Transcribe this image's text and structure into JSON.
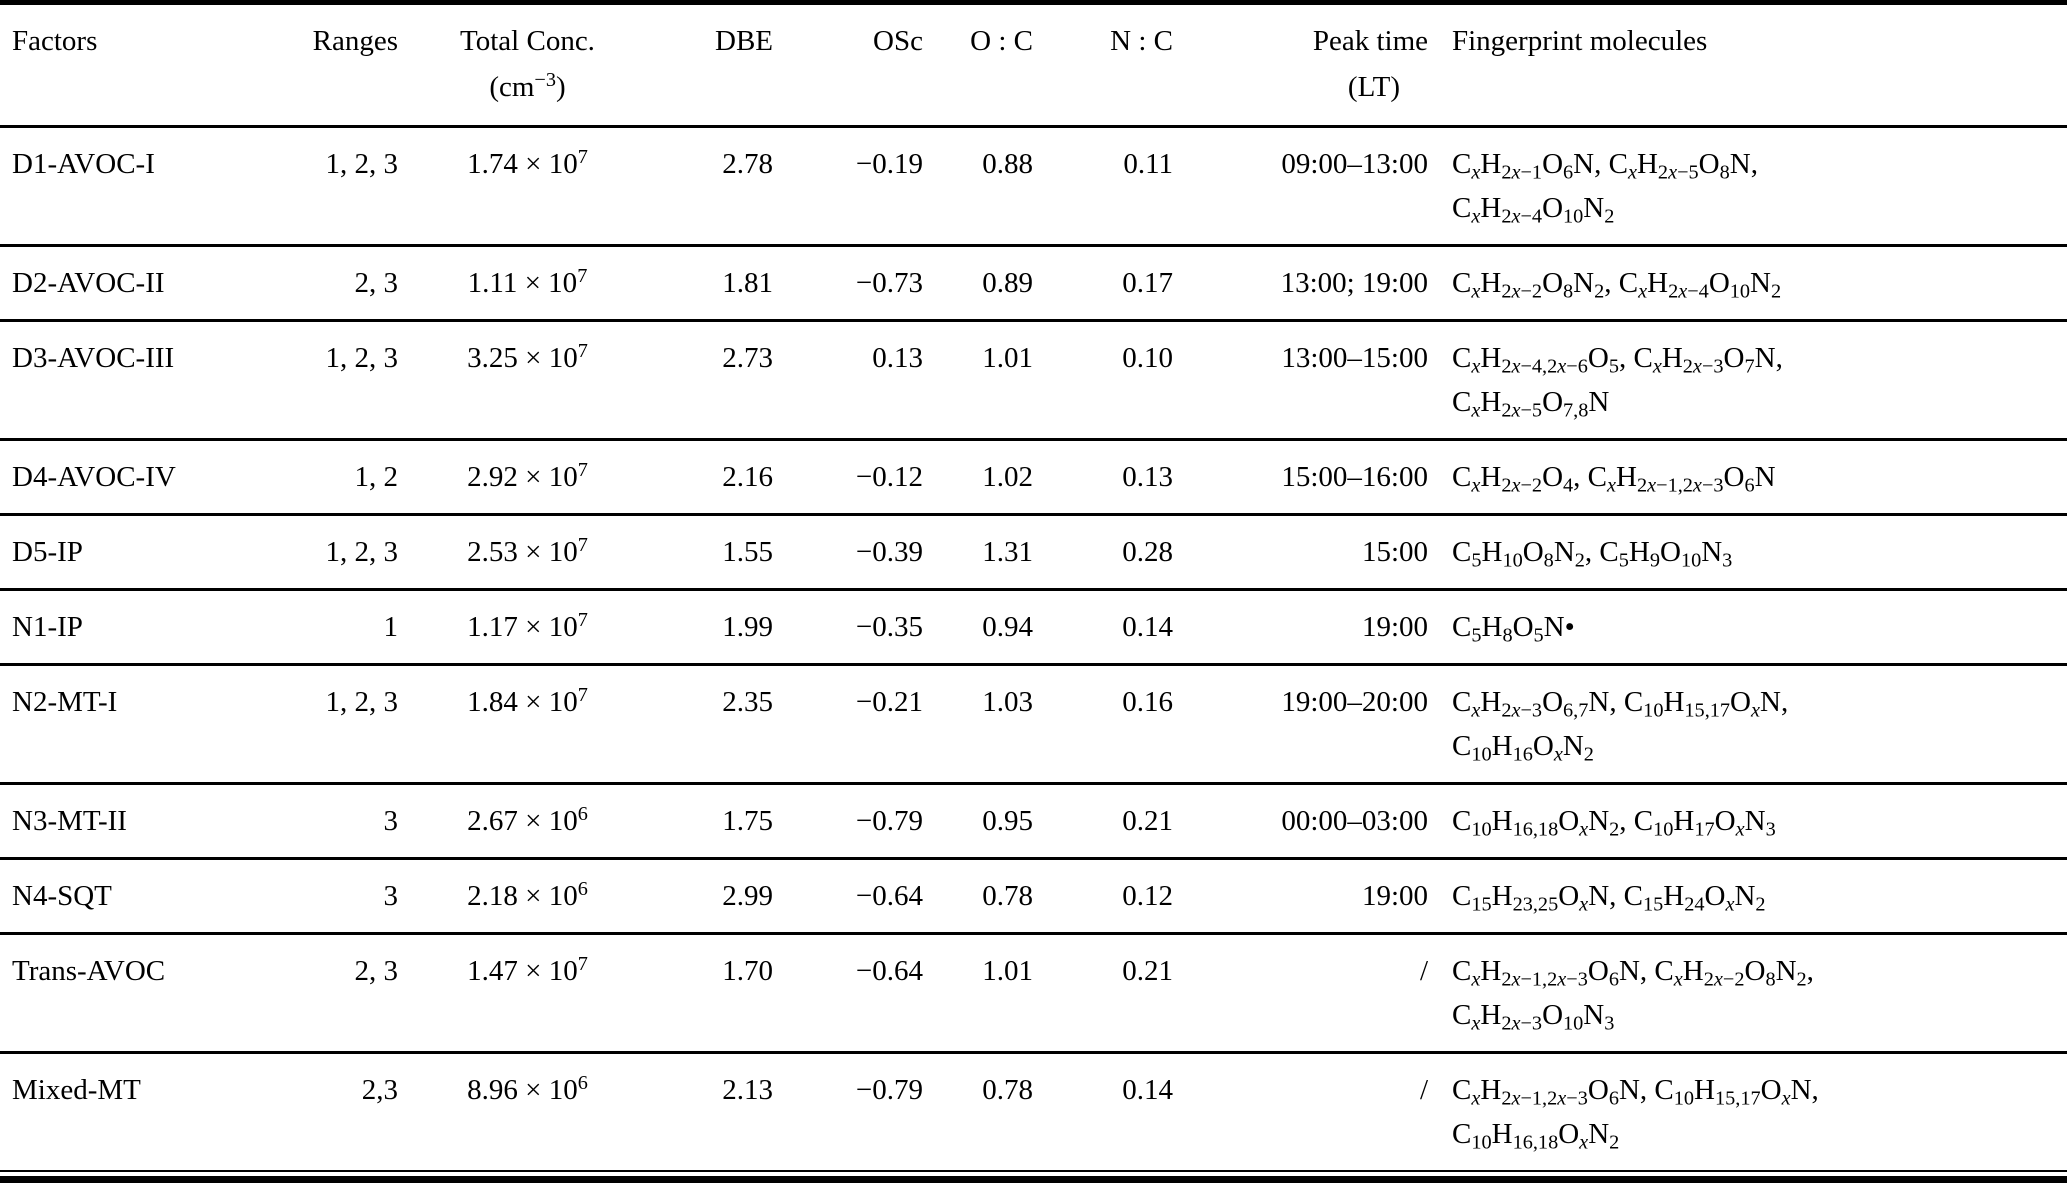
{
  "page": {
    "background_color": "#ffffff",
    "text_color": "#000000",
    "rule_color": "#000000"
  },
  "table": {
    "title": "PMF factors summary table",
    "columns": [
      {
        "key": "factor",
        "label": "Factors"
      },
      {
        "key": "ranges",
        "label": "Ranges"
      },
      {
        "key": "conc",
        "label": "Total Conc.",
        "label2": "(cm^−3^)"
      },
      {
        "key": "dbe",
        "label": "DBE"
      },
      {
        "key": "osc",
        "label": "OSc"
      },
      {
        "key": "oc",
        "label": "O : C"
      },
      {
        "key": "nc",
        "label": "N : C"
      },
      {
        "key": "peak",
        "label": "Peak time",
        "label2": "(LT)"
      },
      {
        "key": "molecules",
        "label": "Fingerprint molecules"
      }
    ],
    "rows": [
      {
        "factor": "D1-AVOC-I",
        "ranges": "1, 2, 3",
        "conc": "1.74 × 10^7^",
        "dbe": "2.78",
        "osc": "−0.19",
        "oc": "0.88",
        "nc": "0.11",
        "peak": "09:00–13:00",
        "molecules": [
          "C~x~H~2x−1~O~6~N, C~x~H~2x−5~O~8~N,",
          "C~x~H~2x−4~O~10~N~2~"
        ]
      },
      {
        "factor": "D2-AVOC-II",
        "ranges": "2, 3",
        "conc": "1.11 × 10^7^",
        "dbe": "1.81",
        "osc": "−0.73",
        "oc": "0.89",
        "nc": "0.17",
        "peak": "13:00; 19:00",
        "molecules": [
          "C~x~H~2x−2~O~8~N~2~, C~x~H~2x−4~O~10~N~2~"
        ]
      },
      {
        "factor": "D3-AVOC-III",
        "ranges": "1, 2, 3",
        "conc": "3.25 × 10^7^",
        "dbe": "2.73",
        "osc": "0.13",
        "oc": "1.01",
        "nc": "0.10",
        "peak": "13:00–15:00",
        "molecules": [
          "C~x~H~2x−4,2x−6~O~5~, C~x~H~2x−3~O~7~N,",
          "C~x~H~2x−5~O~7,8~N"
        ]
      },
      {
        "factor": "D4-AVOC-IV",
        "ranges": "1, 2",
        "conc": "2.92 × 10^7^",
        "dbe": "2.16",
        "osc": "−0.12",
        "oc": "1.02",
        "nc": "0.13",
        "peak": "15:00–16:00",
        "molecules": [
          "C~x~H~2x−2~O~4~, C~x~H~2x−1,2x−3~O~6~N"
        ]
      },
      {
        "factor": "D5-IP",
        "ranges": "1, 2, 3",
        "conc": "2.53 × 10^7^",
        "dbe": "1.55",
        "osc": "−0.39",
        "oc": "1.31",
        "nc": "0.28",
        "peak": "15:00",
        "molecules": [
          "C~5~H~10~O~8~N~2~, C~5~H~9~O~10~N~3~"
        ]
      },
      {
        "factor": "N1-IP",
        "ranges": "1",
        "conc": "1.17 × 10^7^",
        "dbe": "1.99",
        "osc": "−0.35",
        "oc": "0.94",
        "nc": "0.14",
        "peak": "19:00",
        "molecules": [
          "C~5~H~8~O~5~N•"
        ]
      },
      {
        "factor": "N2-MT-I",
        "ranges": "1, 2, 3",
        "conc": "1.84 × 10^7^",
        "dbe": "2.35",
        "osc": "−0.21",
        "oc": "1.03",
        "nc": "0.16",
        "peak": "19:00–20:00",
        "molecules": [
          "C~x~H~2x−3~O~6,7~N, C~10~H~15,17~O~x~N,",
          "C~10~H~16~O~x~N~2~"
        ]
      },
      {
        "factor": "N3-MT-II",
        "ranges": "3",
        "conc": "2.67 × 10^6^",
        "dbe": "1.75",
        "osc": "−0.79",
        "oc": "0.95",
        "nc": "0.21",
        "peak": "00:00–03:00",
        "molecules": [
          "C~10~H~16,18~O~x~N~2~, C~10~H~17~O~x~N~3~"
        ]
      },
      {
        "factor": "N4-SQT",
        "ranges": "3",
        "conc": "2.18 × 10^6^",
        "dbe": "2.99",
        "osc": "−0.64",
        "oc": "0.78",
        "nc": "0.12",
        "peak": "19:00",
        "molecules": [
          "C~15~H~23,25~O~x~N, C~15~H~24~O~x~N~2~"
        ]
      },
      {
        "factor": "Trans-AVOC",
        "ranges": "2, 3",
        "conc": "1.47 × 10^7^",
        "dbe": "1.70",
        "osc": "−0.64",
        "oc": "1.01",
        "nc": "0.21",
        "peak": "/",
        "molecules": [
          "C~x~H~2x−1,2x−3~O~6~N, C~x~H~2x−2~O~8~N~2~,",
          "C~x~H~2x−3~O~10~N~3~"
        ]
      },
      {
        "factor": "Mixed-MT",
        "ranges": "2,3",
        "conc": "8.96 × 10^6^",
        "dbe": "2.13",
        "osc": "−0.79",
        "oc": "0.78",
        "nc": "0.14",
        "peak": "/",
        "molecules": [
          "C~x~H~2x−1,2x−3~O~6~N, C~10~H~15,17~O~x~N,",
          "C~10~H~16,18~O~x~N~2~"
        ]
      }
    ]
  }
}
